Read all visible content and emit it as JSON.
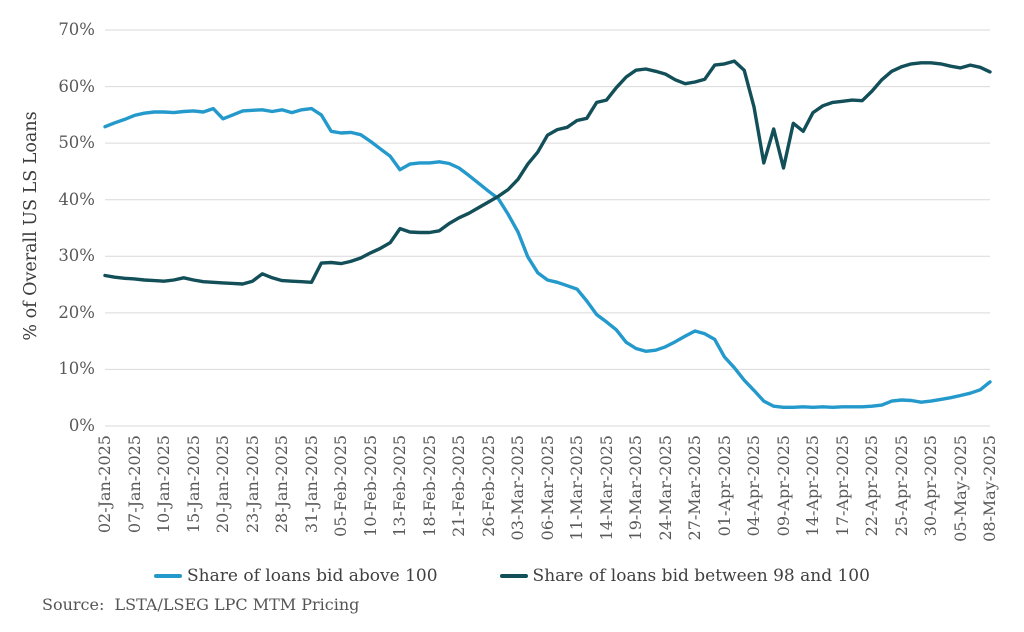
{
  "figure": {
    "y_axis_title": "% of Overall US LS Loans",
    "source_text": "Source:  LSTA/LSEG LPC MTM Pricing"
  },
  "legend": {
    "items": [
      {
        "label": "Share of loans bid above 100",
        "color": "#2499CB"
      },
      {
        "label": "Share of loans bid between 98 and 100",
        "color": "#124F58"
      }
    ]
  },
  "chart_data": {
    "type": "line",
    "title": "",
    "xlabel": "",
    "ylabel": "% of Overall US LS Loans",
    "ylim": [
      0,
      70
    ],
    "grid": "horizontal",
    "gridline_color": "#d9d9d9",
    "legend_position": "bottom",
    "y_ticks": [
      "0%",
      "10%",
      "20%",
      "30%",
      "40%",
      "50%",
      "60%",
      "70%"
    ],
    "x_tick_every": 3,
    "x_tick_labels": [
      "02-Jan-2025",
      "07-Jan-2025",
      "10-Jan-2025",
      "15-Jan-2025",
      "20-Jan-2025",
      "23-Jan-2025",
      "28-Jan-2025",
      "31-Jan-2025",
      "05-Feb-2025",
      "10-Feb-2025",
      "13-Feb-2025",
      "18-Feb-2025",
      "21-Feb-2025",
      "26-Feb-2025",
      "03-Mar-2025",
      "06-Mar-2025",
      "11-Mar-2025",
      "14-Mar-2025",
      "19-Mar-2025",
      "24-Mar-2025",
      "27-Mar-2025",
      "01-Apr-2025",
      "04-Apr-2025",
      "09-Apr-2025",
      "14-Apr-2025",
      "17-Apr-2025",
      "22-Apr-2025",
      "25-Apr-2025",
      "30-Apr-2025",
      "05-May-2025",
      "08-May-2025"
    ],
    "categories": [
      "02-Jan-2025",
      "03-Jan-2025",
      "06-Jan-2025",
      "07-Jan-2025",
      "08-Jan-2025",
      "09-Jan-2025",
      "10-Jan-2025",
      "13-Jan-2025",
      "14-Jan-2025",
      "15-Jan-2025",
      "16-Jan-2025",
      "17-Jan-2025",
      "20-Jan-2025",
      "21-Jan-2025",
      "22-Jan-2025",
      "23-Jan-2025",
      "24-Jan-2025",
      "27-Jan-2025",
      "28-Jan-2025",
      "29-Jan-2025",
      "30-Jan-2025",
      "31-Jan-2025",
      "03-Feb-2025",
      "04-Feb-2025",
      "05-Feb-2025",
      "06-Feb-2025",
      "07-Feb-2025",
      "10-Feb-2025",
      "11-Feb-2025",
      "12-Feb-2025",
      "13-Feb-2025",
      "14-Feb-2025",
      "17-Feb-2025",
      "18-Feb-2025",
      "19-Feb-2025",
      "20-Feb-2025",
      "21-Feb-2025",
      "24-Feb-2025",
      "25-Feb-2025",
      "26-Feb-2025",
      "27-Feb-2025",
      "28-Feb-2025",
      "03-Mar-2025",
      "04-Mar-2025",
      "05-Mar-2025",
      "06-Mar-2025",
      "07-Mar-2025",
      "10-Mar-2025",
      "11-Mar-2025",
      "12-Mar-2025",
      "13-Mar-2025",
      "14-Mar-2025",
      "17-Mar-2025",
      "18-Mar-2025",
      "19-Mar-2025",
      "20-Mar-2025",
      "21-Mar-2025",
      "24-Mar-2025",
      "25-Mar-2025",
      "26-Mar-2025",
      "27-Mar-2025",
      "28-Mar-2025",
      "31-Mar-2025",
      "01-Apr-2025",
      "02-Apr-2025",
      "03-Apr-2025",
      "04-Apr-2025",
      "07-Apr-2025",
      "08-Apr-2025",
      "09-Apr-2025",
      "10-Apr-2025",
      "11-Apr-2025",
      "14-Apr-2025",
      "15-Apr-2025",
      "16-Apr-2025",
      "17-Apr-2025",
      "18-Apr-2025",
      "21-Apr-2025",
      "22-Apr-2025",
      "23-Apr-2025",
      "24-Apr-2025",
      "25-Apr-2025",
      "28-Apr-2025",
      "29-Apr-2025",
      "30-Apr-2025",
      "01-May-2025",
      "02-May-2025",
      "05-May-2025",
      "06-May-2025",
      "07-May-2025",
      "08-May-2025"
    ],
    "series": [
      {
        "name": "Share of loans bid above 100",
        "color": "#2499CB",
        "values": [
          52.9,
          53.6,
          54.2,
          54.9,
          55.3,
          55.5,
          55.5,
          55.4,
          55.6,
          55.7,
          55.5,
          56.1,
          54.3,
          55.0,
          55.7,
          55.8,
          55.9,
          55.6,
          55.9,
          55.4,
          55.9,
          56.1,
          55.0,
          52.1,
          51.8,
          51.9,
          51.5,
          50.3,
          49.0,
          47.7,
          45.3,
          46.3,
          46.5,
          46.5,
          46.7,
          46.4,
          45.6,
          44.3,
          42.9,
          41.5,
          40.2,
          37.4,
          34.3,
          29.9,
          27.1,
          25.8,
          25.4,
          24.8,
          24.2,
          22.1,
          19.7,
          18.4,
          17.0,
          14.8,
          13.7,
          13.2,
          13.4,
          14.0,
          14.9,
          15.9,
          16.8,
          16.3,
          15.3,
          12.2,
          10.3,
          8.1,
          6.3,
          4.4,
          3.5,
          3.3,
          3.3,
          3.4,
          3.3,
          3.4,
          3.3,
          3.4,
          3.4,
          3.4,
          3.5,
          3.7,
          4.4,
          4.6,
          4.5,
          4.2,
          4.4,
          4.7,
          5.0,
          5.4,
          5.8,
          6.4,
          7.8
        ]
      },
      {
        "name": "Share of loans bid between 98 and 100",
        "color": "#124F58",
        "values": [
          26.6,
          26.3,
          26.1,
          26.0,
          25.8,
          25.7,
          25.6,
          25.8,
          26.2,
          25.8,
          25.5,
          25.4,
          25.3,
          25.2,
          25.1,
          25.6,
          26.9,
          26.2,
          25.7,
          25.6,
          25.5,
          25.4,
          28.8,
          28.9,
          28.7,
          29.1,
          29.7,
          30.6,
          31.4,
          32.4,
          34.9,
          34.3,
          34.2,
          34.2,
          34.5,
          35.8,
          36.8,
          37.6,
          38.6,
          39.6,
          40.6,
          41.8,
          43.6,
          46.3,
          48.4,
          51.4,
          52.4,
          52.8,
          54.0,
          54.4,
          57.2,
          57.6,
          59.8,
          61.7,
          62.9,
          63.1,
          62.7,
          62.2,
          61.2,
          60.5,
          60.8,
          61.3,
          63.8,
          64.0,
          64.5,
          62.9,
          56.4,
          46.5,
          52.5,
          45.6,
          53.5,
          52.1,
          55.4,
          56.6,
          57.2,
          57.4,
          57.6,
          57.5,
          59.2,
          61.2,
          62.7,
          63.5,
          64.0,
          64.2,
          64.2,
          64.0,
          63.6,
          63.3,
          63.8,
          63.4,
          62.6
        ]
      }
    ]
  }
}
